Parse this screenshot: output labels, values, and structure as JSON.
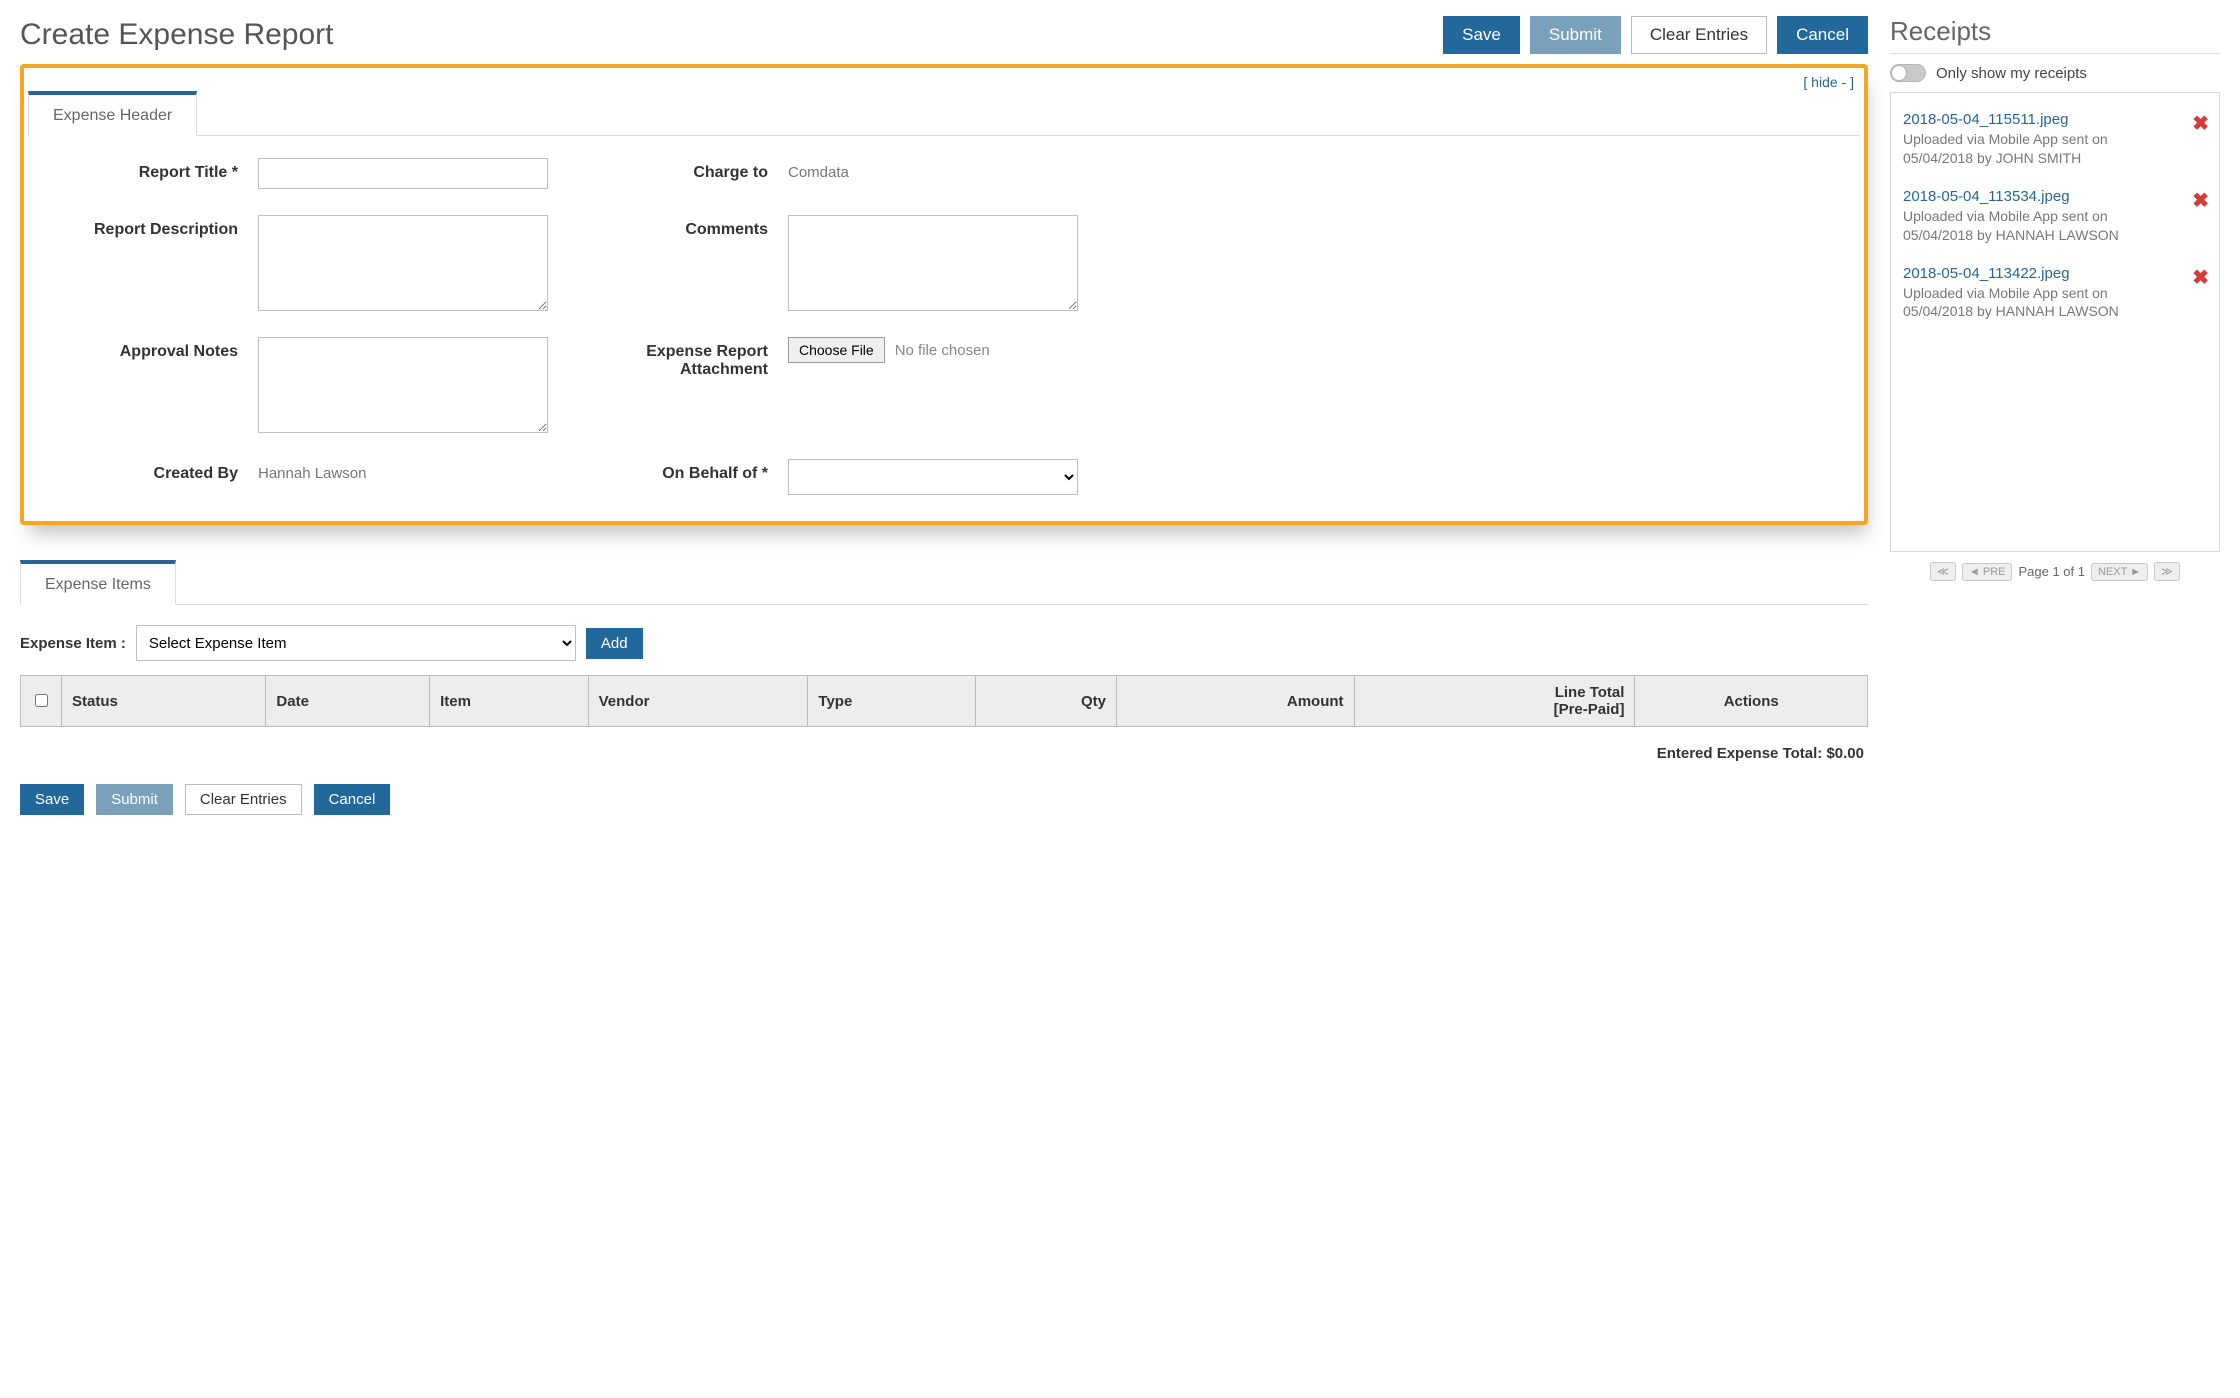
{
  "page": {
    "title": "Create Expense Report",
    "hide_label": "[ hide - ]"
  },
  "buttons": {
    "save": "Save",
    "submit": "Submit",
    "clear": "Clear Entries",
    "cancel": "Cancel",
    "add": "Add",
    "choose_file": "Choose File"
  },
  "tabs": {
    "header": "Expense Header",
    "items": "Expense Items"
  },
  "labels": {
    "report_title": "Report Title *",
    "charge_to": "Charge to",
    "report_desc": "Report Description",
    "comments": "Comments",
    "approval_notes": "Approval Notes",
    "attachment": "Expense Report Attachment",
    "created_by": "Created By",
    "on_behalf": "On Behalf of *",
    "file_status": "No file chosen",
    "expense_item": "Expense Item :",
    "select_expense": "Select Expense Item",
    "entered_total_label": "Entered Expense Total:",
    "entered_total_value": "$0.00"
  },
  "values": {
    "charge_to": "Comdata",
    "created_by": "Hannah Lawson"
  },
  "columns": {
    "status": "Status",
    "date": "Date",
    "item": "Item",
    "vendor": "Vendor",
    "type": "Type",
    "qty": "Qty",
    "amount": "Amount",
    "line_total": "Line Total",
    "line_total_sub": "[Pre-Paid]",
    "actions": "Actions"
  },
  "receipts": {
    "title": "Receipts",
    "only_mine": "Only show my receipts",
    "pager": "Page 1 of 1",
    "pre_label": "PRE",
    "next_label": "NEXT",
    "items": [
      {
        "name": "2018-05-04_115511.jpeg",
        "meta": "Uploaded via Mobile App sent on 05/04/2018 by JOHN SMITH"
      },
      {
        "name": "2018-05-04_113534.jpeg",
        "meta": "Uploaded via Mobile App sent on 05/04/2018 by HANNAH LAWSON"
      },
      {
        "name": "2018-05-04_113422.jpeg",
        "meta": "Uploaded via Mobile App sent on 05/04/2018 by HANNAH LAWSON"
      }
    ]
  },
  "colors": {
    "primary": "#22689a",
    "muted_primary": "#7aa0bb",
    "highlight_border": "#f5a623",
    "link": "#2a6496",
    "danger": "#d83a3a",
    "grid_header_bg": "#ededed",
    "grid_border": "#bbbbbb",
    "text_muted": "#777777"
  }
}
